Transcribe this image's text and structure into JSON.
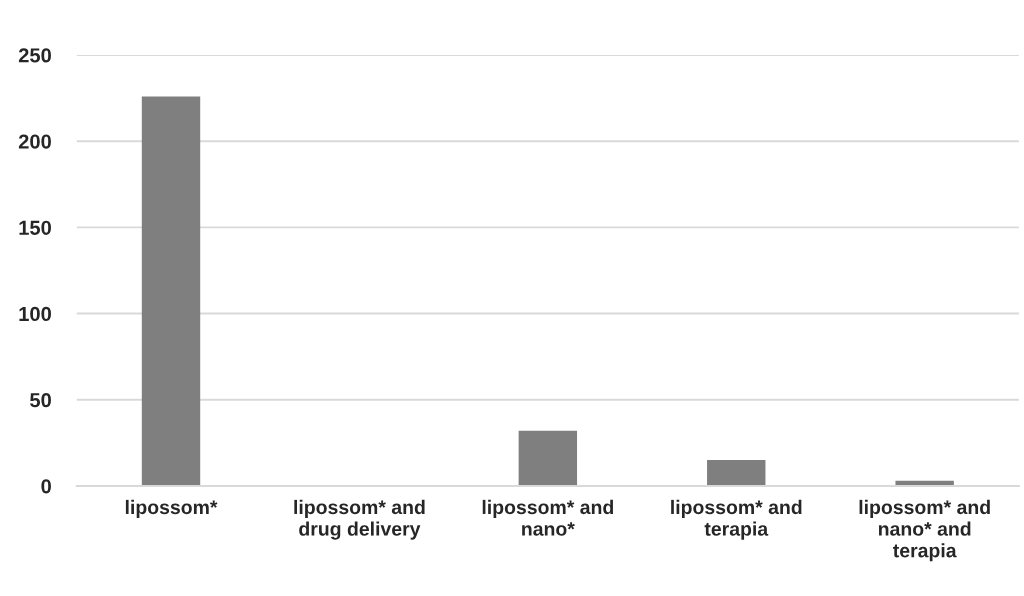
{
  "chart_data": {
    "type": "bar",
    "categories": [
      "lipossom*",
      "lipossom* and\ndrug delivery",
      "lipossom* and\nnano*",
      "lipossom* and\nterapia",
      "lipossom* and\nnano* and\nterapia"
    ],
    "values": [
      226,
      0,
      32,
      15,
      3
    ],
    "color": "#7f7f7f",
    "ylim": [
      0,
      250
    ],
    "yticks": [
      0,
      50,
      100,
      150,
      200,
      250
    ],
    "grid": "y"
  }
}
